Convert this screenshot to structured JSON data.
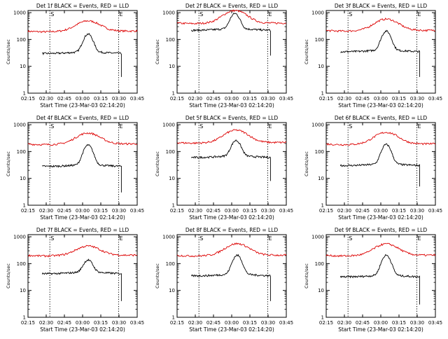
{
  "figure": {
    "colors": {
      "events": "#000000",
      "lld": "#dd0000",
      "axes": "#000000",
      "background": "#ffffff"
    }
  },
  "chart_data": [
    {
      "type": "line",
      "title": "Det 1f BLACK = Events, RED = LLD",
      "xlabel": "Start Time (23-Mar-03 02:14:20)",
      "ylabel": "Counts/sec",
      "xticks": [
        "02:15",
        "02:30",
        "02:45",
        "03:00",
        "03:15",
        "03:30",
        "03:45"
      ],
      "yticks": [
        "1",
        "10",
        "100",
        "1000"
      ],
      "xlim": [
        0,
        100
      ],
      "ylim": [
        1,
        1200
      ],
      "yscale": "log",
      "grid": false,
      "markers": [
        {
          "x": 20,
          "label": "S"
        },
        {
          "x": 83,
          "label": "E"
        }
      ],
      "series": [
        {
          "name": "LLD",
          "color": "red",
          "start": 0,
          "end": 100,
          "base": 160,
          "peak": 420,
          "peak_x": 55
        },
        {
          "name": "Events",
          "color": "black",
          "start": 13,
          "end": 85.5,
          "base": 30,
          "peak": 155,
          "peak_x": 55,
          "drop": 4
        }
      ]
    },
    {
      "type": "line",
      "title": "Det 2f BLACK = Events, RED = LLD",
      "xlabel": "Start Time (23-Mar-03 02:14:20)",
      "ylabel": "Counts/sec",
      "xticks": [
        "02:15",
        "02:30",
        "02:45",
        "03:00",
        "03:15",
        "03:30",
        "03:45"
      ],
      "yticks": [
        "1",
        "10",
        "100",
        "1000"
      ],
      "xlim": [
        0,
        100
      ],
      "ylim": [
        1,
        1200
      ],
      "yscale": "log",
      "grid": false,
      "markers": [
        {
          "x": 20,
          "label": "S"
        },
        {
          "x": 83,
          "label": "E"
        }
      ],
      "series": [
        {
          "name": "LLD",
          "color": "red",
          "start": 0,
          "end": 100,
          "base": 320,
          "peak": 1050,
          "peak_x": 53
        },
        {
          "name": "Events",
          "color": "black",
          "start": 13,
          "end": 85.5,
          "base": 220,
          "peak": 900,
          "peak_x": 53,
          "drop": 25
        }
      ]
    },
    {
      "type": "line",
      "title": "Det 3f BLACK = Events, RED = LLD",
      "xlabel": "Start Time (23-Mar-03 02:14:20)",
      "ylabel": "Counts/sec",
      "xticks": [
        "02:15",
        "02:30",
        "02:45",
        "03:00",
        "03:15",
        "03:30",
        "03:45"
      ],
      "yticks": [
        "1",
        "10",
        "100",
        "1000"
      ],
      "xlim": [
        0,
        100
      ],
      "ylim": [
        1,
        1200
      ],
      "yscale": "log",
      "grid": false,
      "markers": [
        {
          "x": 20,
          "label": "S"
        },
        {
          "x": 83,
          "label": "E"
        }
      ],
      "series": [
        {
          "name": "LLD",
          "color": "red",
          "start": 0,
          "end": 100,
          "base": 170,
          "peak": 500,
          "peak_x": 55
        },
        {
          "name": "Events",
          "color": "black",
          "start": 13,
          "end": 85.5,
          "base": 35,
          "peak": 200,
          "peak_x": 55,
          "drop": 4
        }
      ]
    },
    {
      "type": "line",
      "title": "Det 4f BLACK = Events, RED = LLD",
      "xlabel": "Start Time (23-Mar-03 02:14:20)",
      "ylabel": "Counts/sec",
      "xticks": [
        "02:15",
        "02:30",
        "02:45",
        "03:00",
        "03:15",
        "03:30",
        "03:45"
      ],
      "yticks": [
        "1",
        "10",
        "100",
        "1000"
      ],
      "xlim": [
        0,
        100
      ],
      "ylim": [
        1,
        1200
      ],
      "yscale": "log",
      "grid": false,
      "markers": [
        {
          "x": 20,
          "label": "S"
        },
        {
          "x": 83,
          "label": "E"
        }
      ],
      "series": [
        {
          "name": "LLD",
          "color": "red",
          "start": 0,
          "end": 100,
          "base": 150,
          "peak": 420,
          "peak_x": 55
        },
        {
          "name": "Events",
          "color": "black",
          "start": 13,
          "end": 85.5,
          "base": 28,
          "peak": 170,
          "peak_x": 55,
          "drop": 3
        }
      ]
    },
    {
      "type": "line",
      "title": "Det 5f BLACK = Events, RED = LLD",
      "xlabel": "Start Time (23-Mar-03 02:14:20)",
      "ylabel": "Counts/sec",
      "xticks": [
        "02:15",
        "02:30",
        "02:45",
        "03:00",
        "03:15",
        "03:30",
        "03:45"
      ],
      "yticks": [
        "1",
        "10",
        "100",
        "1000"
      ],
      "xlim": [
        0,
        100
      ],
      "ylim": [
        1,
        1200
      ],
      "yscale": "log",
      "grid": false,
      "markers": [
        {
          "x": 20,
          "label": "S"
        },
        {
          "x": 83,
          "label": "E"
        }
      ],
      "series": [
        {
          "name": "LLD",
          "color": "red",
          "start": 0,
          "end": 100,
          "base": 170,
          "peak": 550,
          "peak_x": 54
        },
        {
          "name": "Events",
          "color": "black",
          "start": 13,
          "end": 85.5,
          "base": 60,
          "peak": 250,
          "peak_x": 54,
          "drop": 8
        }
      ]
    },
    {
      "type": "line",
      "title": "Det 6f BLACK = Events, RED = LLD",
      "xlabel": "Start Time (23-Mar-03 02:14:20)",
      "ylabel": "Counts/sec",
      "xticks": [
        "02:15",
        "02:30",
        "02:45",
        "03:00",
        "03:15",
        "03:30",
        "03:45"
      ],
      "yticks": [
        "1",
        "10",
        "100",
        "1000"
      ],
      "xlim": [
        0,
        100
      ],
      "ylim": [
        1,
        1200
      ],
      "yscale": "log",
      "grid": false,
      "markers": [
        {
          "x": 20,
          "label": "S"
        },
        {
          "x": 83,
          "label": "E"
        }
      ],
      "series": [
        {
          "name": "LLD",
          "color": "red",
          "start": 0,
          "end": 100,
          "base": 150,
          "peak": 450,
          "peak_x": 55
        },
        {
          "name": "Events",
          "color": "black",
          "start": 13,
          "end": 85.5,
          "base": 30,
          "peak": 180,
          "peak_x": 55,
          "drop": 5
        }
      ]
    },
    {
      "type": "line",
      "title": "Det 7f BLACK = Events, RED = LLD",
      "xlabel": "Start Time (23-Mar-03 02:14:20)",
      "ylabel": "Counts/sec",
      "xticks": [
        "02:15",
        "02:30",
        "02:45",
        "03:00",
        "03:15",
        "03:30",
        "03:45"
      ],
      "yticks": [
        "1",
        "10",
        "100",
        "1000"
      ],
      "xlim": [
        0,
        100
      ],
      "ylim": [
        1,
        1200
      ],
      "yscale": "log",
      "grid": false,
      "markers": [
        {
          "x": 20,
          "label": "S"
        },
        {
          "x": 83,
          "label": "E"
        }
      ],
      "series": [
        {
          "name": "LLD",
          "color": "red",
          "start": 0,
          "end": 100,
          "base": 160,
          "peak": 380,
          "peak_x": 55
        },
        {
          "name": "Events",
          "color": "black",
          "start": 13,
          "end": 85.5,
          "base": 42,
          "peak": 130,
          "peak_x": 55,
          "drop": 4
        }
      ]
    },
    {
      "type": "line",
      "title": "Det 8f BLACK = Events, RED = LLD",
      "xlabel": "Start Time (23-Mar-03 02:14:20)",
      "ylabel": "Counts/sec",
      "xticks": [
        "02:15",
        "02:30",
        "02:45",
        "03:00",
        "03:15",
        "03:30",
        "03:45"
      ],
      "yticks": [
        "1",
        "10",
        "100",
        "1000"
      ],
      "xlim": [
        0,
        100
      ],
      "ylim": [
        1,
        1200
      ],
      "yscale": "log",
      "grid": false,
      "markers": [
        {
          "x": 20,
          "label": "S"
        },
        {
          "x": 83,
          "label": "E"
        }
      ],
      "series": [
        {
          "name": "LLD",
          "color": "red",
          "start": 0,
          "end": 100,
          "base": 160,
          "peak": 480,
          "peak_x": 55
        },
        {
          "name": "Events",
          "color": "black",
          "start": 13,
          "end": 85.5,
          "base": 35,
          "peak": 200,
          "peak_x": 55,
          "drop": 4
        }
      ]
    },
    {
      "type": "line",
      "title": "Det 9f BLACK = Events, RED = LLD",
      "xlabel": "Start Time (23-Mar-03 02:14:20)",
      "ylabel": "Counts/sec",
      "xticks": [
        "02:15",
        "02:30",
        "02:45",
        "03:00",
        "03:15",
        "03:30",
        "03:45"
      ],
      "yticks": [
        "1",
        "10",
        "100",
        "1000"
      ],
      "xlim": [
        0,
        100
      ],
      "ylim": [
        1,
        1200
      ],
      "yscale": "log",
      "grid": false,
      "markers": [
        {
          "x": 20,
          "label": "S"
        },
        {
          "x": 83,
          "label": "E"
        }
      ],
      "series": [
        {
          "name": "LLD",
          "color": "red",
          "start": 0,
          "end": 100,
          "base": 160,
          "peak": 470,
          "peak_x": 55
        },
        {
          "name": "Events",
          "color": "black",
          "start": 13,
          "end": 85.5,
          "base": 32,
          "peak": 200,
          "peak_x": 55,
          "drop": 3
        }
      ]
    }
  ]
}
